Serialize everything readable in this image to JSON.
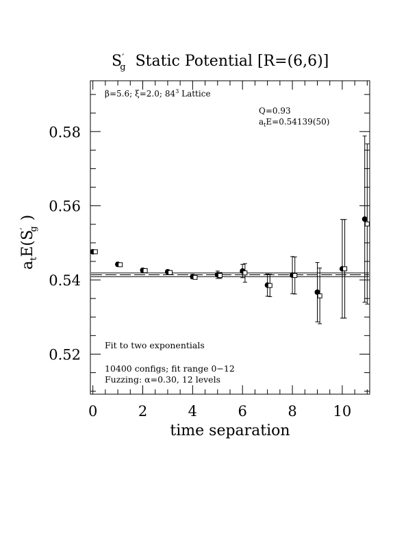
{
  "chart_data": {
    "type": "scatter",
    "title": "S′g  Static Potential [R=(6,6)]",
    "title_parts": {
      "symbol": "S",
      "prime": "′",
      "sub": "g",
      "rest": "Static Potential [R=(6,6)]"
    },
    "xlabel": "time separation",
    "ylabel_parts": {
      "a": "a",
      "t": "t",
      "body": "E(S",
      "prime": "′",
      "g": "g",
      "close": ")"
    },
    "xlim": [
      -0.1,
      11.1
    ],
    "ylim": [
      0.5092,
      0.5937
    ],
    "xticks": [
      "0",
      "2",
      "4",
      "6",
      "8",
      "10"
    ],
    "yticks": [
      "0.52",
      "0.54",
      "0.56",
      "0.58"
    ],
    "grid": false,
    "series": [
      {
        "marker": "filled-circle",
        "points": [
          {
            "x": 0,
            "y": 0.5476,
            "err": 0.0005
          },
          {
            "x": 1,
            "y": 0.5442,
            "err": 0.0005
          },
          {
            "x": 2,
            "y": 0.5426,
            "err": 0.0005
          },
          {
            "x": 3,
            "y": 0.5422,
            "err": 0.0005
          },
          {
            "x": 4,
            "y": 0.5409,
            "err": 0.0006
          },
          {
            "x": 5,
            "y": 0.5414,
            "err": 0.001
          },
          {
            "x": 6,
            "y": 0.5424,
            "err": 0.0018
          },
          {
            "x": 7,
            "y": 0.5386,
            "err": 0.003
          },
          {
            "x": 8,
            "y": 0.5413,
            "err": 0.005
          },
          {
            "x": 9,
            "y": 0.5367,
            "err": 0.008
          },
          {
            "x": 10,
            "y": 0.543,
            "err": 0.0133
          },
          {
            "x": 10.9,
            "y": 0.5564,
            "err": 0.0224
          }
        ]
      },
      {
        "marker": "open-square",
        "points": [
          {
            "x": 0.1,
            "y": 0.5476,
            "err": 0.0003
          },
          {
            "x": 1.1,
            "y": 0.5441,
            "err": 0.0004
          },
          {
            "x": 2.1,
            "y": 0.5425,
            "err": 0.0004
          },
          {
            "x": 3.1,
            "y": 0.542,
            "err": 0.0004
          },
          {
            "x": 4.1,
            "y": 0.5407,
            "err": 0.0005
          },
          {
            "x": 5.1,
            "y": 0.5412,
            "err": 0.0008
          },
          {
            "x": 6.1,
            "y": 0.5419,
            "err": 0.0025
          },
          {
            "x": 7.1,
            "y": 0.5385,
            "err": 0.003
          },
          {
            "x": 8.1,
            "y": 0.5412,
            "err": 0.005
          },
          {
            "x": 9.1,
            "y": 0.5357,
            "err": 0.0075
          },
          {
            "x": 10.1,
            "y": 0.543,
            "err": 0.0133
          },
          {
            "x": 11.0,
            "y": 0.5551,
            "err": 0.0216
          }
        ]
      }
    ],
    "fit": {
      "value": 0.54139,
      "error": 0.0005,
      "x_range": [
        -0.1,
        11.1
      ]
    },
    "annotations": {
      "lattice": {
        "beta": "β=5.6;",
        "xi": "ξ=2.0;",
        "lattice_pre": "84",
        "lattice_sup": "3",
        "lattice_post": " Lattice"
      },
      "q": "Q=0.93",
      "fit_result": {
        "a": "a",
        "t": "t",
        "rest": "E=0.54139(50)"
      },
      "fit_type": "Fit to two exponentials",
      "configs": "10400 configs; fit range 0−12",
      "fuzzing": {
        "pre": "Fuzzing: ",
        "alpha": "α",
        "post": "=0.30, 12 levels"
      }
    }
  }
}
